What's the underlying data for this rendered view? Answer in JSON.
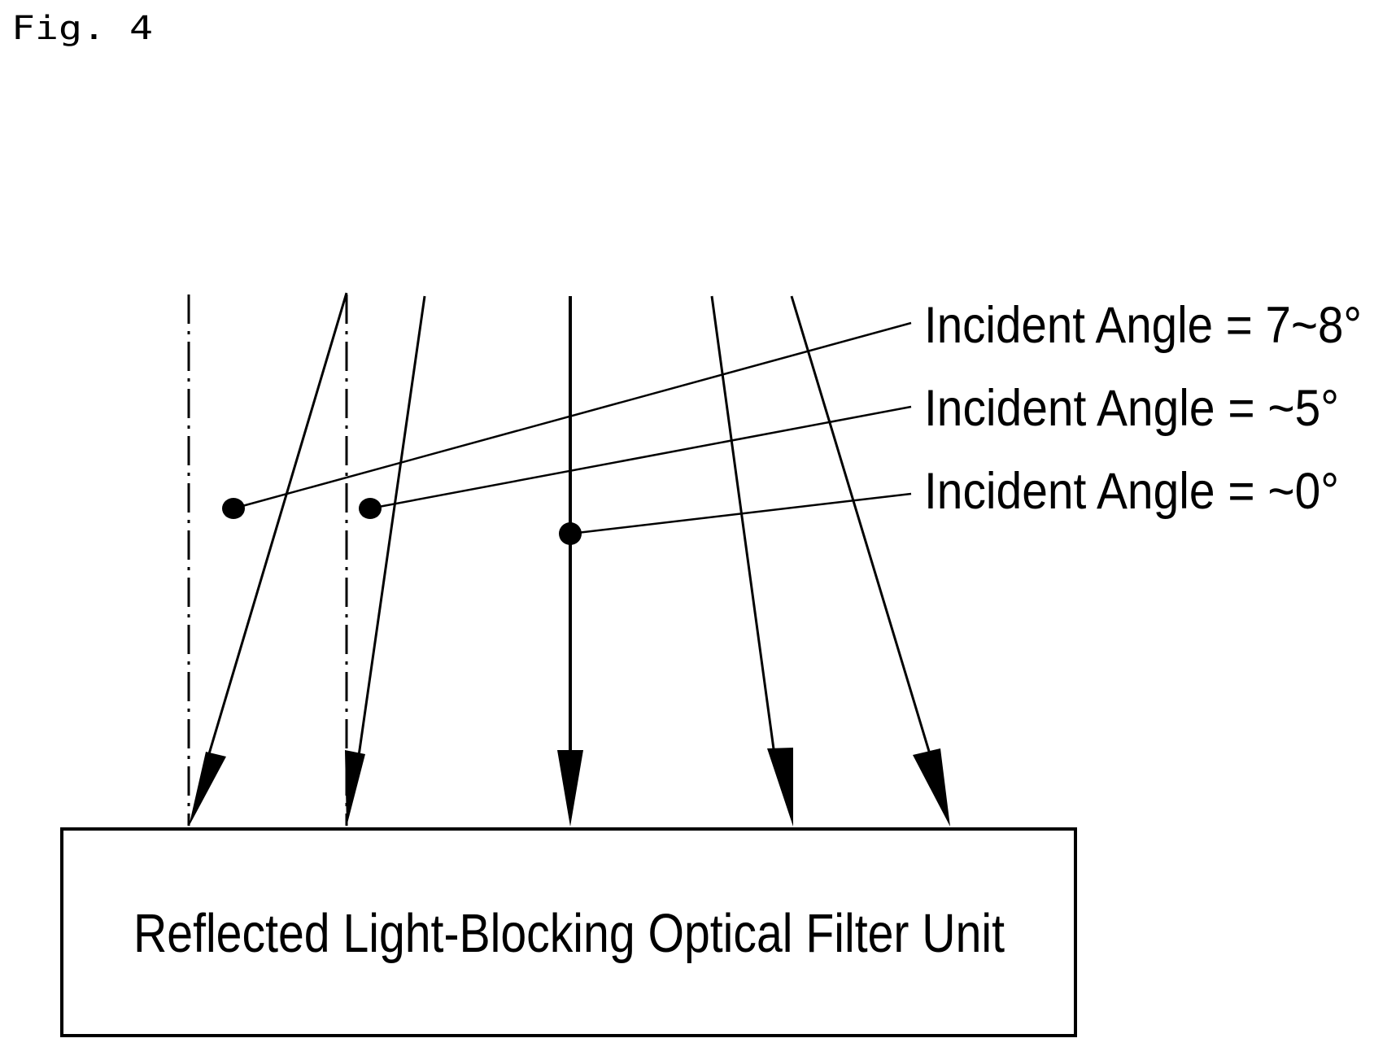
{
  "figure": {
    "label": "Fig. 4"
  },
  "filter_box": {
    "label": "Reflected Light-Blocking Optical Filter Unit"
  },
  "callouts": [
    {
      "text": "Incident Angle = 7~8°"
    },
    {
      "text": "Incident Angle = ~5°"
    },
    {
      "text": "Incident Angle = ~0°"
    }
  ]
}
